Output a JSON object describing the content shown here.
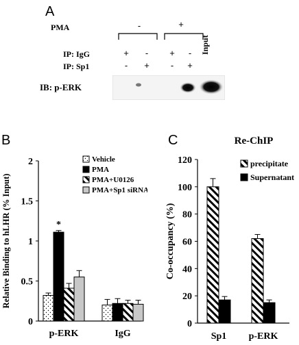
{
  "panelA": {
    "letter": "A",
    "pma_label": "PMA",
    "pma_signs": [
      "-",
      "+"
    ],
    "ip_igg_label": "IP: IgG",
    "ip_sp1_label": "IP: Sp1",
    "igg_signs": [
      "+",
      "-",
      "+",
      "-"
    ],
    "sp1_signs": [
      "-",
      "+",
      "-",
      "+"
    ],
    "input_label": "Input",
    "ib_label": "IB:  p-ERK"
  },
  "panelB": {
    "letter": "B",
    "chart_data": {
      "type": "bar",
      "ylabel": "Relative Binding to hLHR (% Input)",
      "ylim": [
        0,
        2
      ],
      "yticks": [
        "0",
        "0.5",
        "1",
        "1.5",
        "2"
      ],
      "categories": [
        "p-ERK",
        "IgG"
      ],
      "series": [
        {
          "name": "Vehicle",
          "values": [
            0.32,
            0.2
          ],
          "errors": [
            0.03,
            0.07
          ],
          "fill": "dots"
        },
        {
          "name": "PMA",
          "values": [
            1.11,
            0.22
          ],
          "errors": [
            0.02,
            0.06
          ],
          "fill": "black"
        },
        {
          "name": "PMA+U0126",
          "values": [
            0.41,
            0.22
          ],
          "errors": [
            0.06,
            0.04
          ],
          "fill": "hatch"
        },
        {
          "name": "PMA+Sp1 siRNA",
          "values": [
            0.55,
            0.21
          ],
          "errors": [
            0.08,
            0.05
          ],
          "fill": "gray"
        }
      ],
      "annotation": "*"
    }
  },
  "panelC": {
    "letter": "C",
    "chart_data": {
      "type": "bar",
      "title": "Re-ChIP",
      "ylabel": "Co-occupancy (%)",
      "ylim": [
        0,
        120
      ],
      "yticks": [
        "0",
        "20",
        "40",
        "60",
        "80",
        "100",
        "120"
      ],
      "categories": [
        "Sp1",
        "p-ERK"
      ],
      "series": [
        {
          "name": "precipitate",
          "values": [
            100,
            62
          ],
          "errors": [
            6,
            3
          ],
          "fill": "hatch"
        },
        {
          "name": "Supernatant",
          "values": [
            17,
            15
          ],
          "errors": [
            2.5,
            2
          ],
          "fill": "black"
        }
      ]
    }
  }
}
